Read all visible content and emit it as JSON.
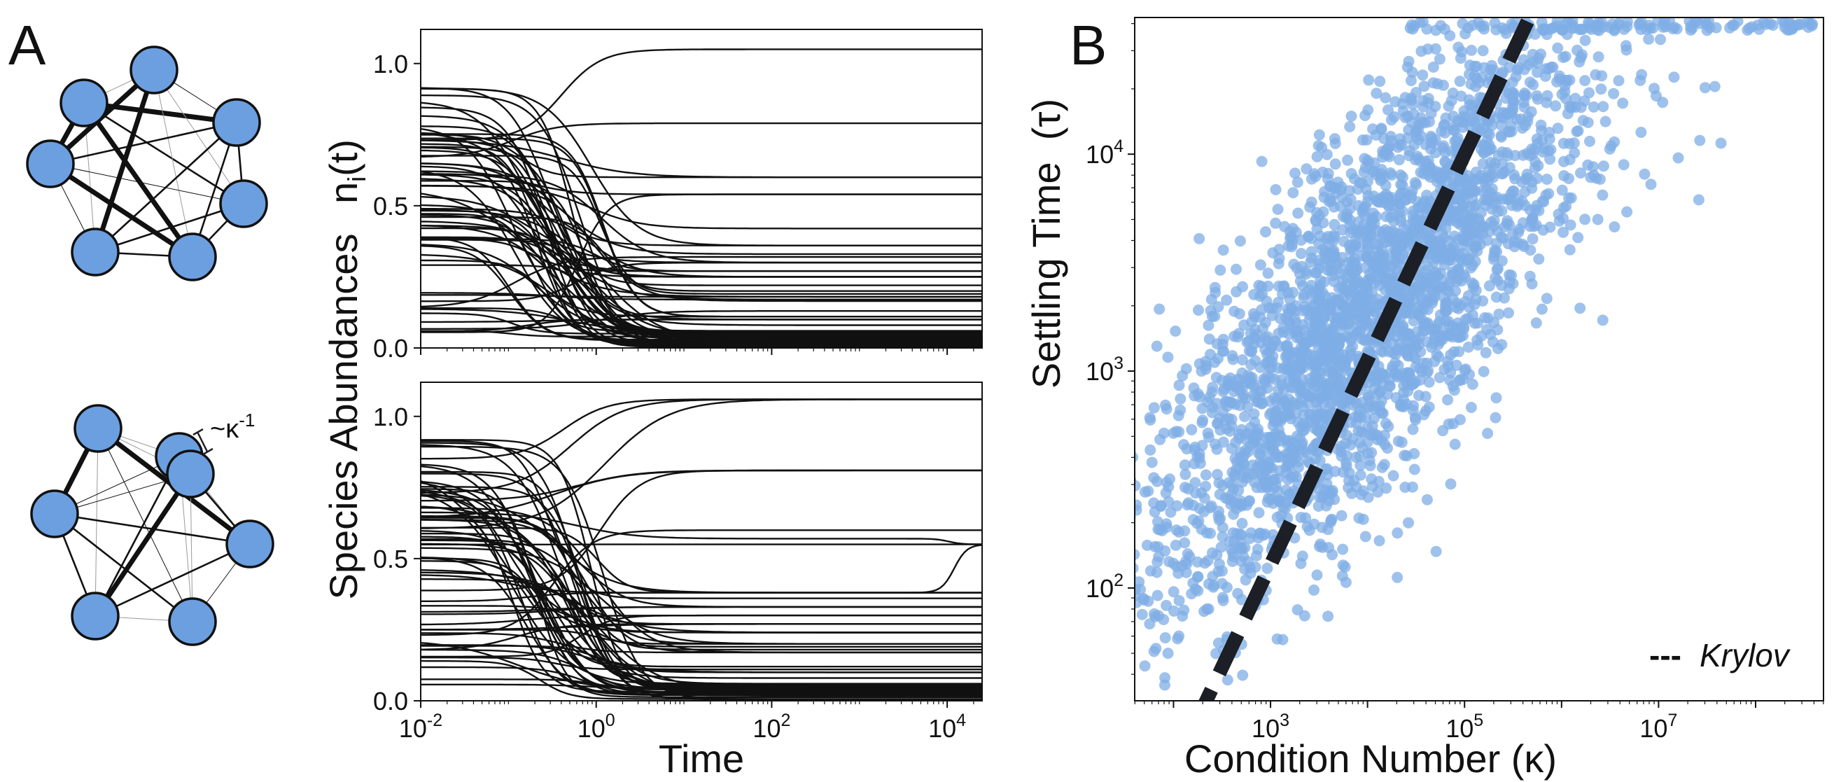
{
  "panel_labels": {
    "a": "A",
    "b": "B"
  },
  "network": {
    "edge_label": "~κ",
    "edge_label_exp": "-1",
    "node_color": "#6b9fe0"
  },
  "chart_data": [
    {
      "type": "line",
      "panel": "A-top",
      "title": "",
      "xlabel": "",
      "ylabel": "n",
      "ylabel_sub": "i",
      "ylabel_tail": "(t)",
      "xscale": "log",
      "xlim": [
        0.01,
        25000
      ],
      "ylim": [
        0,
        1.12
      ],
      "yticks": [
        0.0,
        0.5,
        1.0
      ],
      "ytick_labels": [
        "0.0",
        "0.5",
        "1.0"
      ],
      "series_desc": "~70 species trajectories n_i(t), decaying from initial values 0.0-0.93 and settling by t≈10",
      "settled_levels": [
        1.05,
        0.79,
        0.6,
        0.54,
        0.42,
        0.36,
        0.33,
        0.32,
        0.3,
        0.27,
        0.25,
        0.22,
        0.2,
        0.19,
        0.18,
        0.17,
        0.165,
        0.13,
        0.11,
        0.1,
        0.08,
        0.06,
        0.04,
        0.02
      ],
      "color": "#111111"
    },
    {
      "type": "line",
      "panel": "A-bottom",
      "title": "",
      "xlabel": "Time",
      "ylabel": "Species Abundances",
      "xscale": "log",
      "xlim": [
        0.01,
        25000
      ],
      "ylim": [
        0,
        1.12
      ],
      "xticks": [
        0.01,
        1,
        100,
        10000
      ],
      "xtick_labels": [
        {
          "base": "10",
          "exp": "-2"
        },
        {
          "base": "10",
          "exp": "0"
        },
        {
          "base": "10",
          "exp": "2"
        },
        {
          "base": "10",
          "exp": "4"
        }
      ],
      "yticks": [
        0.0,
        0.5,
        1.0
      ],
      "ytick_labels": [
        "0.0",
        "0.5",
        "1.0"
      ],
      "series_desc": "~70 species trajectories with slower settling; some curves change near t≈10^4",
      "settled_levels": [
        1.06,
        0.81,
        0.6,
        0.57,
        0.55,
        0.38,
        0.36,
        0.33,
        0.3,
        0.27,
        0.24,
        0.2,
        0.19,
        0.18,
        0.17,
        0.12,
        0.11,
        0.1,
        0.08,
        0.06,
        0.04,
        0.02
      ],
      "color": "#111111"
    },
    {
      "type": "scatter",
      "panel": "B",
      "title": "",
      "xlabel": "Condition Number (κ)",
      "ylabel": "Settling Time  (τ)",
      "xscale": "log",
      "yscale": "log",
      "xlim_log10": [
        1.6,
        8.7
      ],
      "ylim_log10": [
        1.48,
        4.63
      ],
      "xticks": [
        {
          "base": "10",
          "exp": "3",
          "log10": 3
        },
        {
          "base": "10",
          "exp": "5",
          "log10": 5
        },
        {
          "base": "10",
          "exp": "7",
          "log10": 7
        }
      ],
      "yticks": [
        {
          "base": "10",
          "exp": "2",
          "log10": 2
        },
        {
          "base": "10",
          "exp": "3",
          "log10": 3
        },
        {
          "base": "10",
          "exp": "4",
          "log10": 4
        }
      ],
      "point_color": "#7fade6",
      "n_points": 3000,
      "cloud_trend": {
        "log_tau_at_log_kappa_3": 2.8,
        "log_tau_at_log_kappa_6": 4.2
      },
      "fit_line": {
        "label": "Krylov",
        "legend_marker": "---",
        "legend_position": "bottom-right",
        "color": "#1c1f26",
        "from": {
          "log10_kappa": 2.2,
          "log10_tau": 1.35
        },
        "to": {
          "log10_kappa": 5.7,
          "log10_tau": 4.66
        }
      }
    }
  ]
}
